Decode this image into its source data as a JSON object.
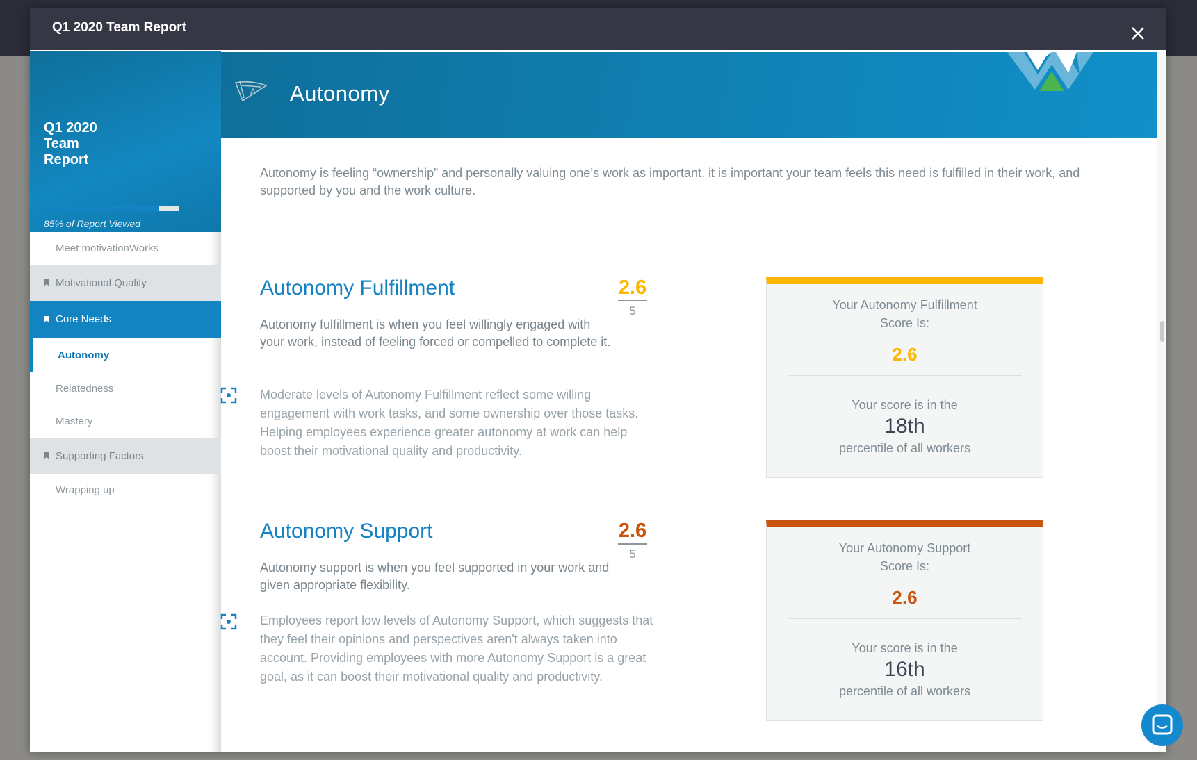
{
  "window": {
    "title": "Q1 2020 Team Report"
  },
  "sidebar": {
    "title": "Q1 2020 Team Report",
    "progress_percent": 85,
    "progress_label": "85% of Report Viewed",
    "items": [
      {
        "label": "Meet motivationWorks"
      },
      {
        "label": "Motivational Quality"
      },
      {
        "label": "Core Needs"
      },
      {
        "label": "Autonomy"
      },
      {
        "label": "Relatedness"
      },
      {
        "label": "Mastery"
      },
      {
        "label": "Supporting Factors"
      },
      {
        "label": "Wrapping up"
      }
    ]
  },
  "header": {
    "title": "Autonomy"
  },
  "main": {
    "intro": "Autonomy is feeling “ownership” and personally valuing one’s work as important. it is important your team feels this need is fulfilled in their work, and supported by you and the work culture.",
    "sections": [
      {
        "title": "Autonomy Fulfillment",
        "score": "2.6",
        "max": "5",
        "color": "#ffb600",
        "description": "Autonomy fulfillment is when you feel willingly engaged with your work, instead of feeling forced or compelled to complete it.",
        "detail": "Moderate levels of Autonomy Fulfillment reflect some willing engagement with work tasks, and some ownership over those tasks. Helping employees experience greater autonomy at work can help boost their motivational quality and productivity.",
        "card": {
          "label_line1": "Your Autonomy Fulfillment",
          "label_line2": "Score Is:",
          "score": "2.6",
          "pre": "Your score is in the",
          "percentile": "18th",
          "post": "percentile of all workers"
        }
      },
      {
        "title": "Autonomy Support",
        "score": "2.6",
        "max": "5",
        "color": "#c9560f",
        "description": "Autonomy support is when you feel supported in your work and given appropriate flexibility.",
        "detail": "Employees report low levels of Autonomy Support, which suggests that they feel their opinions and perspectives aren't always taken into account. Providing employees with more Autonomy Support is a great goal, as it can boost their motivational quality and productivity.",
        "card": {
          "label_line1": "Your Autonomy Support",
          "label_line2": "Score Is:",
          "score": "2.6",
          "pre": "Your score is in the",
          "percentile": "16th",
          "post": "percentile of all workers"
        }
      }
    ]
  }
}
